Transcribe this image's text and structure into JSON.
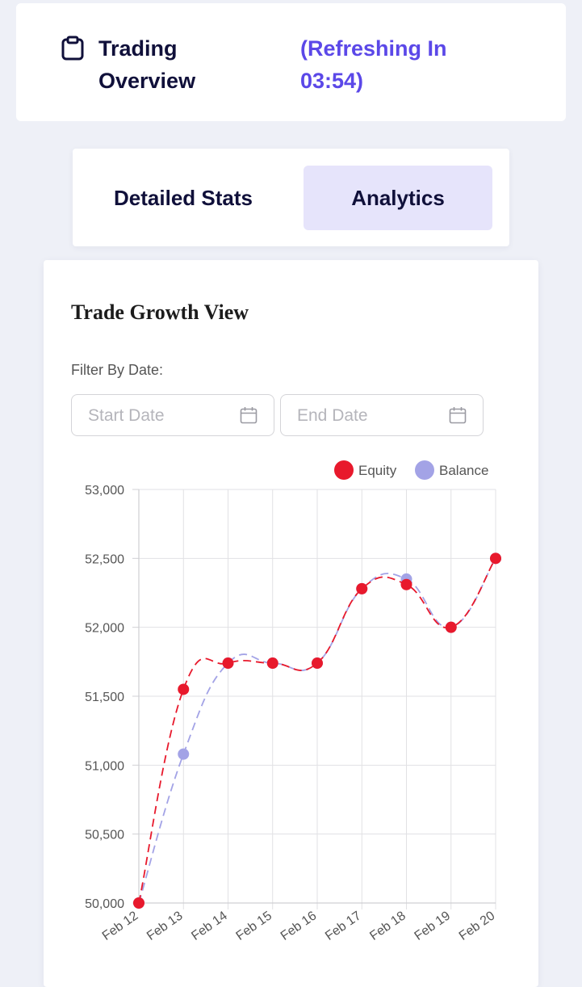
{
  "header": {
    "title": "Trading Overview",
    "refresh_text": "(Refreshing In 03:54)",
    "icon": "clipboard-icon"
  },
  "tabs": [
    {
      "label": "Detailed Stats",
      "active": false
    },
    {
      "label": "Analytics",
      "active": true
    }
  ],
  "card": {
    "title": "Trade Growth View",
    "filter_label": "Filter By Date:",
    "start_placeholder": "Start Date",
    "end_placeholder": "End Date",
    "calendar_icon": "calendar-icon"
  },
  "colors": {
    "accent": "#5b48e8",
    "equity": "#e8192c",
    "balance": "#a3a3e6",
    "active_tab_bg": "#e6e4fb"
  },
  "chart_data": {
    "type": "line",
    "categories": [
      "Feb 12",
      "Feb 13",
      "Feb 14",
      "Feb 15",
      "Feb 16",
      "Feb 17",
      "Feb 18",
      "Feb 19",
      "Feb 20"
    ],
    "series": [
      {
        "name": "Equity",
        "values": [
          50000,
          51550,
          51740,
          51740,
          51740,
          52280,
          52310,
          52000,
          52500
        ],
        "color": "#e8192c",
        "style": "dashed"
      },
      {
        "name": "Balance",
        "values": [
          50000,
          51080,
          51740,
          51740,
          51740,
          52280,
          52350,
          52000,
          52500
        ],
        "color": "#a3a3e6",
        "style": "dashed"
      }
    ],
    "ylim": [
      50000,
      53000
    ],
    "yticks": [
      50000,
      50500,
      51000,
      51500,
      52000,
      52500,
      53000
    ],
    "ytick_labels": [
      "50,000",
      "50,500",
      "51,000",
      "51,500",
      "52,000",
      "52,500",
      "53,000"
    ],
    "legend": "top-right",
    "grid": true
  }
}
